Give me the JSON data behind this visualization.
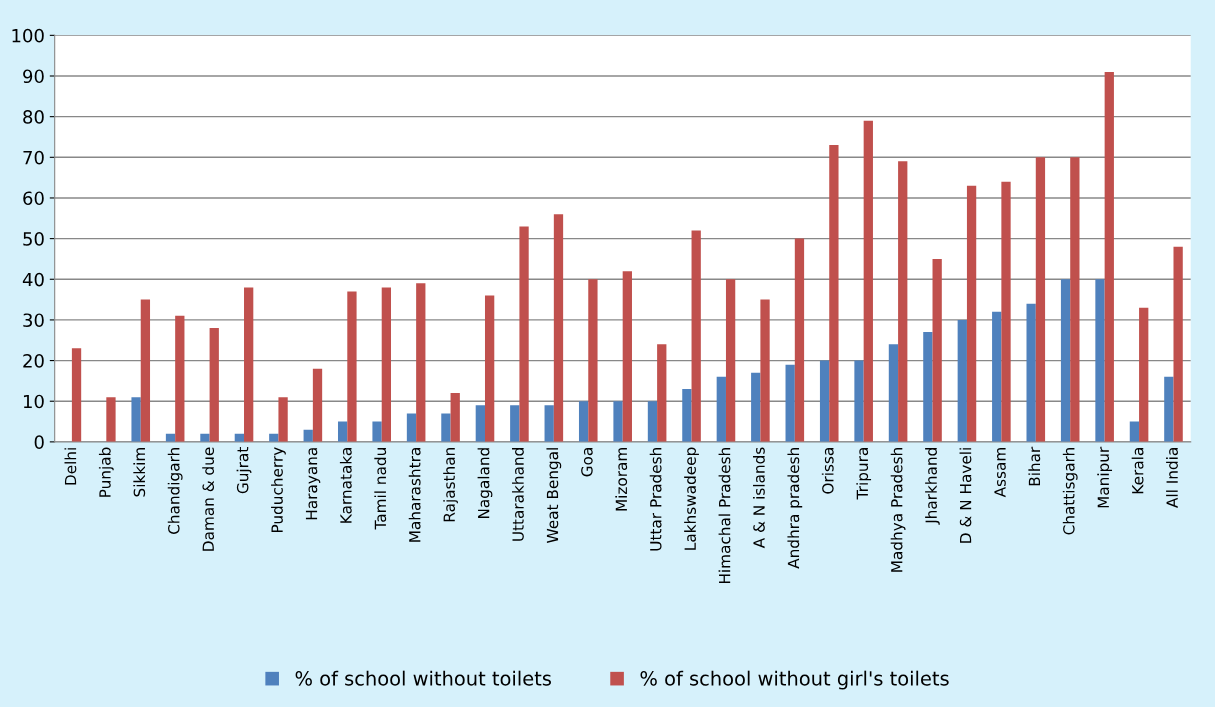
{
  "chart_data": {
    "type": "bar",
    "categories": [
      "Delhi",
      "Punjab",
      "Sikkim",
      "Chandigarh",
      "Daman & due",
      "Gujrat",
      "Puducherry",
      "Harayana",
      "Karnataka",
      "Tamil nadu",
      "Maharashtra",
      "Rajasthan",
      "Nagaland",
      "Uttarakhand",
      "Weat Bengal",
      "Goa",
      "Mizoram",
      "Uttar Pradesh",
      "Lakhswadeep",
      "Himachal Pradesh",
      "A & N islands",
      "Andhra pradesh",
      "Orissa",
      "Tripura",
      "Madhya Pradesh",
      "Jharkhand",
      "D & N Haveli",
      "Assam",
      "Bihar",
      "Chattisgarh",
      "Manipur",
      "Kerala",
      "All India"
    ],
    "series": [
      {
        "name": "% of school without toilets",
        "color": "#4f81bd",
        "values": [
          0,
          0,
          11,
          2,
          2,
          2,
          2,
          3,
          5,
          5,
          7,
          7,
          9,
          9,
          9,
          10,
          10,
          10,
          13,
          16,
          17,
          19,
          20,
          20,
          24,
          27,
          30,
          32,
          34,
          40,
          40,
          5,
          16
        ]
      },
      {
        "name": "% of school without girl's toilets",
        "color": "#c0504d",
        "values": [
          23,
          11,
          35,
          31,
          28,
          38,
          11,
          18,
          37,
          38,
          39,
          12,
          36,
          53,
          56,
          40,
          42,
          24,
          52,
          40,
          35,
          50,
          73,
          79,
          69,
          45,
          63,
          64,
          70,
          70,
          91,
          33,
          48
        ]
      }
    ],
    "ylim": [
      0,
      100
    ],
    "yticks": [
      0,
      10,
      20,
      30,
      40,
      50,
      60,
      70,
      80,
      90,
      100
    ],
    "grid": "y",
    "legend": "bottom"
  }
}
